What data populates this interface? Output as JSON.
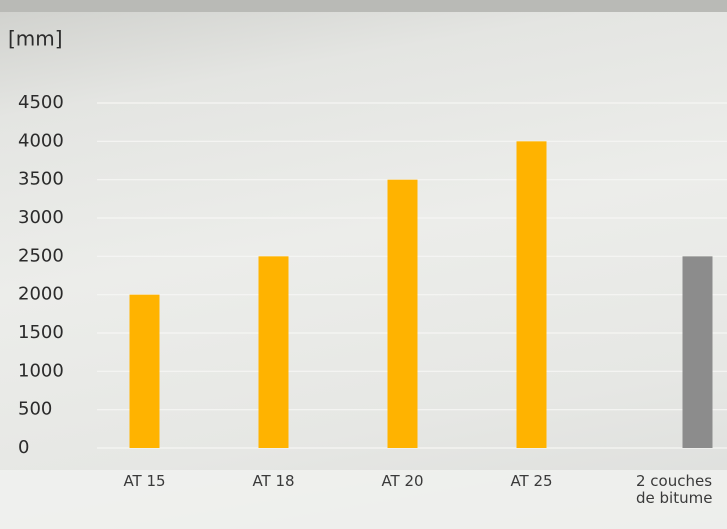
{
  "chart_data": {
    "type": "bar",
    "y_label": "[mm]",
    "categories": [
      "AT 15",
      "AT 18",
      "AT 20",
      "AT 25",
      "2 couches de bitume"
    ],
    "values": [
      2000,
      2500,
      3500,
      4000,
      2500
    ],
    "colors": [
      "#ffb300",
      "#ffb300",
      "#ffb300",
      "#ffb300",
      "#8c8c8c"
    ],
    "ylim": [
      0,
      4500
    ],
    "yticks": [
      0,
      500,
      1000,
      1500,
      2000,
      2500,
      3000,
      3500,
      4000,
      4500
    ],
    "grid": true
  }
}
